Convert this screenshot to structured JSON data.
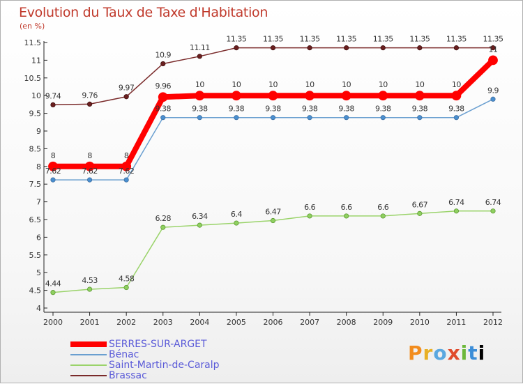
{
  "title": "Evolution du Taux de Taxe d'Habitation",
  "unit": "(en %)",
  "logo_text": "Proxiti",
  "chart_data": {
    "type": "line",
    "x": [
      2000,
      2001,
      2002,
      2003,
      2004,
      2005,
      2006,
      2007,
      2008,
      2009,
      2010,
      2011,
      2012
    ],
    "ylim": [
      4,
      11.5
    ],
    "yticks": [
      "4",
      "4.5",
      "5",
      "5.5",
      "6",
      "6.5",
      "7",
      "7.5",
      "8",
      "8.5",
      "9",
      "9.5",
      "10",
      "10.5",
      "11",
      "11.5"
    ],
    "grid": false,
    "legend_position": "bottom-left",
    "series": [
      {
        "name": "SERRES-SUR-ARGET",
        "color": "#ff0000",
        "values": [
          8,
          8,
          8,
          9.96,
          10,
          10,
          10,
          10,
          10,
          10,
          10,
          10,
          11
        ],
        "labels": [
          "8",
          "8",
          "8",
          "9.96",
          "10",
          "10",
          "10",
          "10",
          "10",
          "10",
          "10",
          "10",
          "11"
        ]
      },
      {
        "name": "Bénac",
        "color": "#6a9fd0",
        "values": [
          7.62,
          7.62,
          7.62,
          9.38,
          9.38,
          9.38,
          9.38,
          9.38,
          9.38,
          9.38,
          9.38,
          9.38,
          9.9
        ],
        "labels": [
          "7.62",
          "7.62",
          "7.62",
          "9.38",
          "9.38",
          "9.38",
          "9.38",
          "9.38",
          "9.38",
          "9.38",
          "9.38",
          "9.38",
          "9.9"
        ]
      },
      {
        "name": "Saint-Martin-de-Caralp",
        "color": "#9ad36a",
        "values": [
          4.44,
          4.53,
          4.58,
          6.28,
          6.34,
          6.4,
          6.47,
          6.6,
          6.6,
          6.6,
          6.67,
          6.74,
          6.74
        ],
        "labels": [
          "4.44",
          "4.53",
          "4.58",
          "6.28",
          "6.34",
          "6.4",
          "6.47",
          "6.6",
          "6.6",
          "6.6",
          "6.67",
          "6.74",
          "6.74"
        ]
      },
      {
        "name": "Brassac",
        "color": "#7a2a2a",
        "values": [
          9.74,
          9.76,
          9.97,
          10.9,
          11.11,
          11.35,
          11.35,
          11.35,
          11.35,
          11.35,
          11.35,
          11.35,
          11.35
        ],
        "labels": [
          "9.74",
          "9.76",
          "9.97",
          "10.9",
          "11.11",
          "11.35",
          "11.35",
          "11.35",
          "11.35",
          "11.35",
          "11.35",
          "11.35",
          "11.35"
        ]
      }
    ]
  }
}
